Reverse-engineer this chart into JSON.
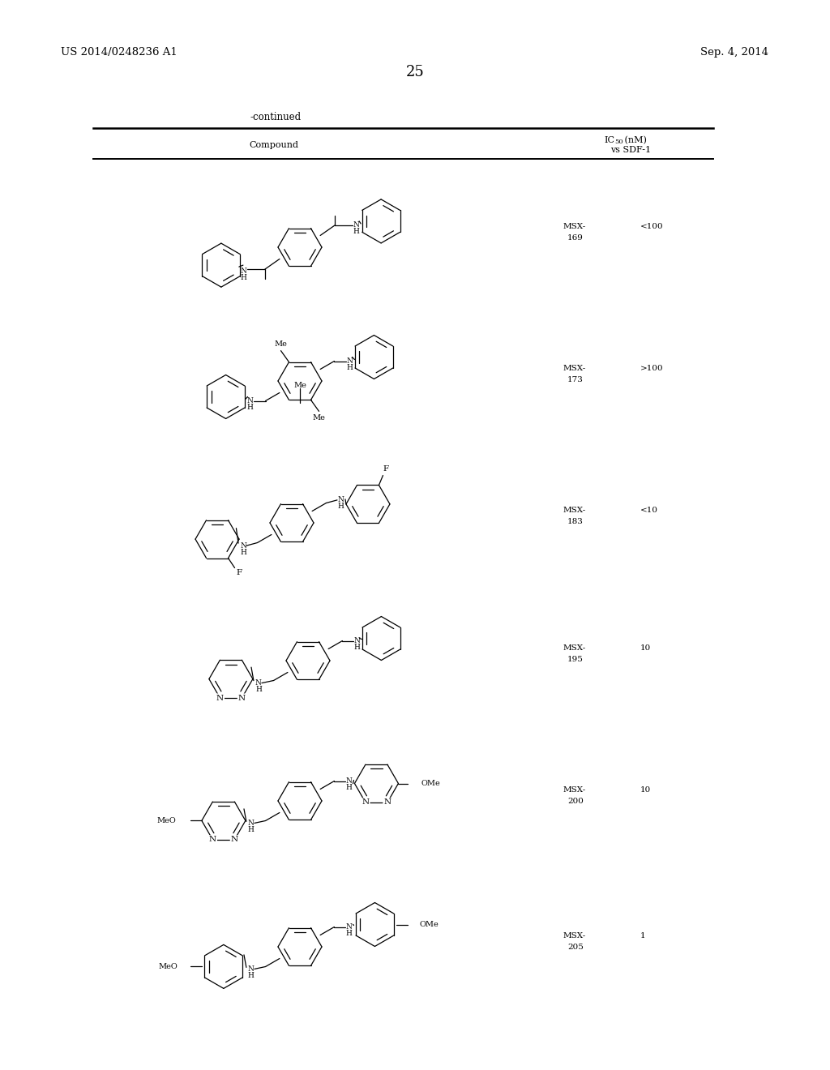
{
  "page_number": "25",
  "patent_number": "US 2014/0248236 A1",
  "patent_date": "Sep. 4, 2014",
  "continued_label": "-continued",
  "table_header_compound": "Compound",
  "ic50_label_1": "IC",
  "ic50_sub": "50",
  "ic50_label_2": " (nM)",
  "sdf_label": "vs SDF-1",
  "compounds": [
    {
      "id1": "MSX-",
      "id2": "169",
      "ic50": "<100"
    },
    {
      "id1": "MSX-",
      "id2": "173",
      "ic50": ">100"
    },
    {
      "id1": "MSX-",
      "id2": "183",
      "ic50": "<10"
    },
    {
      "id1": "MSX-",
      "id2": "195",
      "ic50": "10"
    },
    {
      "id1": "MSX-",
      "id2": "200",
      "ic50": "10"
    },
    {
      "id1": "MSX-",
      "id2": "205",
      "ic50": "1"
    }
  ],
  "row_centers_y": [
    285,
    460,
    635,
    805,
    980,
    1160
  ],
  "bg_color": "#ffffff",
  "text_color": "#000000"
}
